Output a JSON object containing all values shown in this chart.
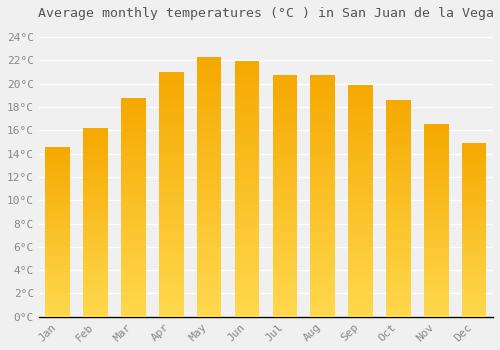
{
  "months": [
    "Jan",
    "Feb",
    "Mar",
    "Apr",
    "May",
    "Jun",
    "Jul",
    "Aug",
    "Sep",
    "Oct",
    "Nov",
    "Dec"
  ],
  "values": [
    14.6,
    16.2,
    18.8,
    21.0,
    22.3,
    21.9,
    20.7,
    20.7,
    19.9,
    18.6,
    16.5,
    14.9
  ],
  "bar_color_top": "#F5A800",
  "bar_color_bottom": "#FFD84D",
  "title": "Average monthly temperatures (°C ) in San Juan de la Vega",
  "ylim": [
    0,
    25
  ],
  "yticks": [
    0,
    2,
    4,
    6,
    8,
    10,
    12,
    14,
    16,
    18,
    20,
    22,
    24
  ],
  "background_color": "#f0f0f0",
  "grid_color": "#ffffff",
  "title_fontsize": 9.5,
  "tick_fontsize": 8,
  "bar_width": 0.65
}
